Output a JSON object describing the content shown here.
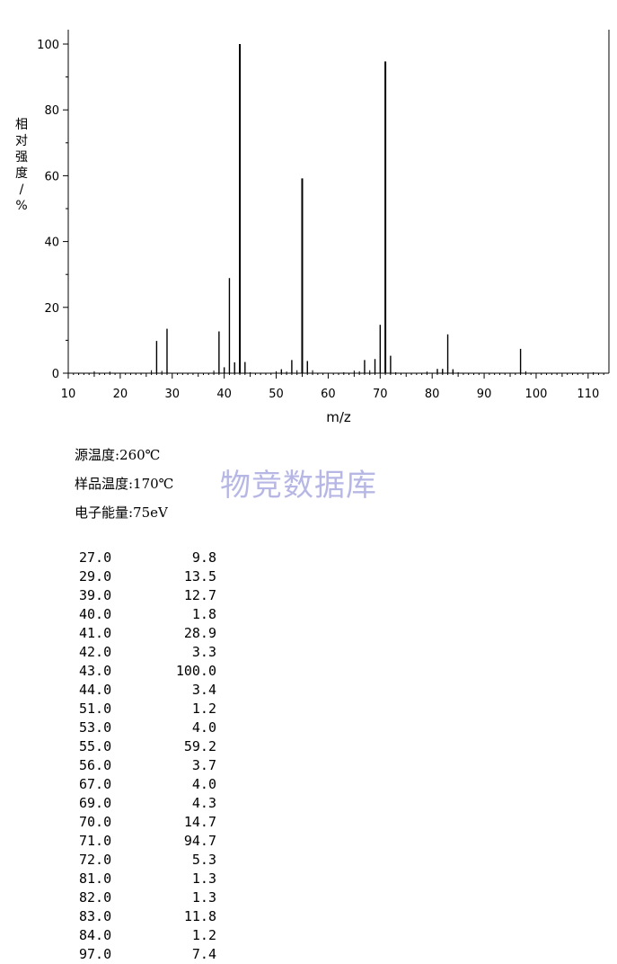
{
  "conditions": {
    "source_temp": "源温度:260℃",
    "sample_temp": "样品温度:170℃",
    "electron_energy": "电子能量:75eV"
  },
  "watermark": "物竞数据库",
  "chart_data": {
    "type": "bar",
    "title": "",
    "xlabel": "m/z",
    "ylabel": "相对强度/%",
    "xlim": [
      10,
      114
    ],
    "ylim": [
      0,
      100
    ],
    "x_ticks": [
      10,
      20,
      30,
      40,
      50,
      60,
      70,
      80,
      90,
      100,
      110
    ],
    "y_ticks": [
      0,
      20,
      40,
      60,
      80,
      100
    ],
    "grid": false,
    "peaks": [
      {
        "mz": "27.0",
        "abundance": "9.8"
      },
      {
        "mz": "29.0",
        "abundance": "13.5"
      },
      {
        "mz": "39.0",
        "abundance": "12.7"
      },
      {
        "mz": "40.0",
        "abundance": "1.8"
      },
      {
        "mz": "41.0",
        "abundance": "28.9"
      },
      {
        "mz": "42.0",
        "abundance": "3.3"
      },
      {
        "mz": "43.0",
        "abundance": "100.0"
      },
      {
        "mz": "44.0",
        "abundance": "3.4"
      },
      {
        "mz": "51.0",
        "abundance": "1.2"
      },
      {
        "mz": "53.0",
        "abundance": "4.0"
      },
      {
        "mz": "55.0",
        "abundance": "59.2"
      },
      {
        "mz": "56.0",
        "abundance": "3.7"
      },
      {
        "mz": "67.0",
        "abundance": "4.0"
      },
      {
        "mz": "69.0",
        "abundance": "4.3"
      },
      {
        "mz": "70.0",
        "abundance": "14.7"
      },
      {
        "mz": "71.0",
        "abundance": "94.7"
      },
      {
        "mz": "72.0",
        "abundance": "5.3"
      },
      {
        "mz": "81.0",
        "abundance": "1.3"
      },
      {
        "mz": "82.0",
        "abundance": "1.3"
      },
      {
        "mz": "83.0",
        "abundance": "11.8"
      },
      {
        "mz": "84.0",
        "abundance": "1.2"
      },
      {
        "mz": "97.0",
        "abundance": "7.4"
      }
    ],
    "minor_peaks": [
      {
        "mz": 15,
        "abundance": 0.6
      },
      {
        "mz": 18,
        "abundance": 0.5
      },
      {
        "mz": 26,
        "abundance": 0.9
      },
      {
        "mz": 28,
        "abundance": 0.7
      },
      {
        "mz": 38,
        "abundance": 0.8
      },
      {
        "mz": 45,
        "abundance": 0.3
      },
      {
        "mz": 50,
        "abundance": 0.6
      },
      {
        "mz": 52,
        "abundance": 0.5
      },
      {
        "mz": 54,
        "abundance": 0.9
      },
      {
        "mz": 57,
        "abundance": 0.9
      },
      {
        "mz": 63,
        "abundance": 0.3
      },
      {
        "mz": 65,
        "abundance": 0.8
      },
      {
        "mz": 66,
        "abundance": 0.6
      },
      {
        "mz": 68,
        "abundance": 0.9
      },
      {
        "mz": 73,
        "abundance": 0.3
      },
      {
        "mz": 79,
        "abundance": 0.5
      },
      {
        "mz": 85,
        "abundance": 0.3
      },
      {
        "mz": 98,
        "abundance": 0.6
      },
      {
        "mz": 111,
        "abundance": 0.3
      }
    ]
  }
}
